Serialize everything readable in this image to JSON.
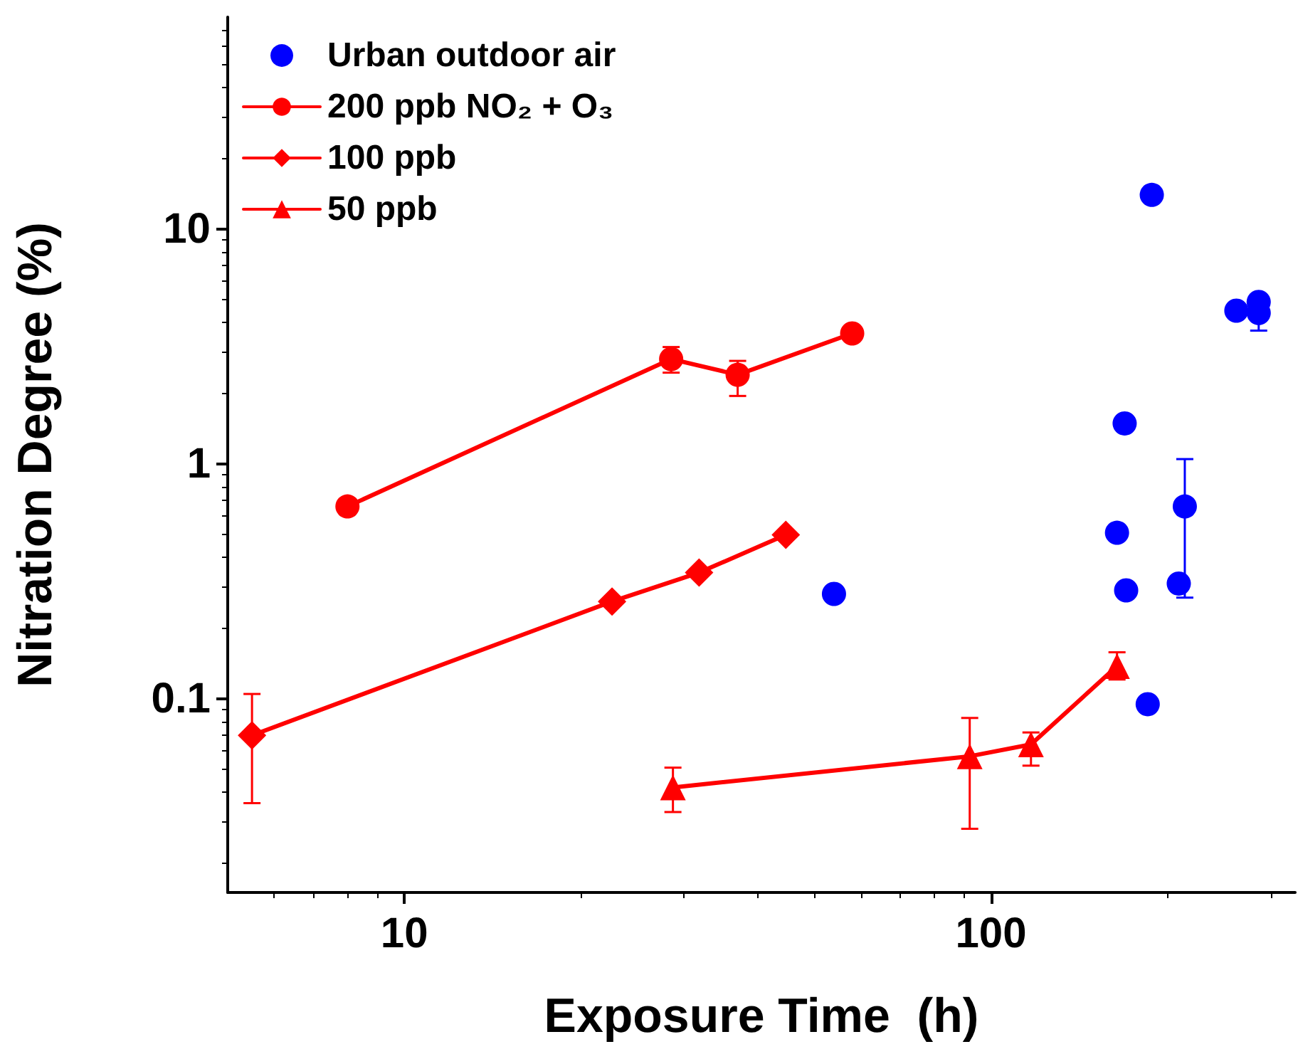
{
  "chart_data": {
    "type": "line",
    "xlabel": "Exposure Time  (h)",
    "ylabel": "Nitration Degree (%)",
    "log": "xy",
    "xlim": [
      5,
      330
    ],
    "xticks": [
      10,
      100
    ],
    "ylim": [
      0.015,
      80
    ],
    "yticks": [
      0.1,
      1,
      10
    ],
    "grid": false,
    "legend": "top left",
    "series": [
      {
        "name": "Urban outdoor air",
        "type": "scatter",
        "marker": "circle",
        "color": "#0000ff",
        "x": [
          54,
          188,
          169,
          164,
          170,
          214,
          209,
          185,
          262,
          286,
          286
        ],
        "values": [
          0.28,
          14,
          1.49,
          0.51,
          0.29,
          0.66,
          0.31,
          0.095,
          4.5,
          4.9,
          4.4
        ],
        "errors": [
          null,
          null,
          null,
          null,
          null,
          [
            0.27,
            1.05
          ],
          null,
          null,
          null,
          null,
          [
            3.7,
            4.4
          ]
        ]
      },
      {
        "name": "200 ppb NO₂ + O₃",
        "marker": "circle",
        "color": "#ff0000",
        "x": [
          8,
          28.5,
          37,
          58
        ],
        "values": [
          0.66,
          2.8,
          2.4,
          3.6
        ],
        "errors": [
          null,
          [
            2.45,
            3.15
          ],
          [
            1.95,
            2.75
          ],
          null
        ]
      },
      {
        "name": "100 ppb",
        "marker": "diamond",
        "color": "#ff0000",
        "x": [
          5.5,
          22.6,
          31.8,
          44.7
        ],
        "values": [
          0.07,
          0.26,
          0.345,
          0.5
        ],
        "errors": [
          [
            0.036,
            0.105
          ],
          null,
          null,
          null
        ]
      },
      {
        "name": "50 ppb",
        "marker": "triangle",
        "color": "#ff0000",
        "x": [
          28.7,
          92,
          117,
          164
        ],
        "values": [
          0.042,
          0.057,
          0.064,
          0.138
        ],
        "errors": [
          [
            0.033,
            0.051
          ],
          [
            0.028,
            0.083
          ],
          [
            0.052,
            0.072
          ],
          [
            0.121,
            0.158
          ]
        ]
      }
    ]
  }
}
